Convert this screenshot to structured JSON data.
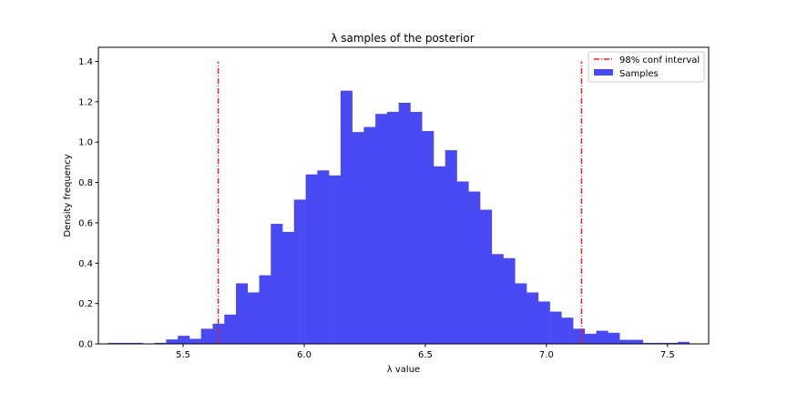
{
  "chart_data": {
    "type": "histogram",
    "title": "λ samples of the posterior",
    "xlabel": "λ value",
    "ylabel": "Density frequency",
    "xlim": [
      5.15,
      7.67
    ],
    "ylim": [
      0,
      1.47
    ],
    "x_ticks": [
      5.5,
      6.0,
      6.5,
      7.0,
      7.5
    ],
    "x_tick_labels": [
      "5.5",
      "6.0",
      "6.5",
      "7.0",
      "7.5"
    ],
    "y_ticks": [
      0.0,
      0.2,
      0.4,
      0.6,
      0.8,
      1.0,
      1.2,
      1.4
    ],
    "y_tick_labels": [
      "0.0",
      "0.2",
      "0.4",
      "0.6",
      "0.8",
      "1.0",
      "1.2",
      "1.4"
    ],
    "grid": false,
    "legend_position": "top-right",
    "series": [
      {
        "name": "Samples",
        "kind": "histogram",
        "color": "#4a4af5",
        "bin_edges": [
          5.19,
          5.238,
          5.286,
          5.334,
          5.382,
          5.43,
          5.478,
          5.526,
          5.574,
          5.622,
          5.67,
          5.718,
          5.766,
          5.814,
          5.862,
          5.91,
          5.958,
          6.006,
          6.054,
          6.102,
          6.15,
          6.198,
          6.246,
          6.294,
          6.342,
          6.39,
          6.438,
          6.486,
          6.534,
          6.582,
          6.63,
          6.678,
          6.726,
          6.774,
          6.822,
          6.87,
          6.918,
          6.966,
          7.014,
          7.062,
          7.11,
          7.158,
          7.206,
          7.254,
          7.302,
          7.35,
          7.398,
          7.446,
          7.494,
          7.542,
          7.59
        ],
        "values": [
          0.005,
          0.005,
          0.005,
          0.0,
          0.005,
          0.022,
          0.04,
          0.025,
          0.075,
          0.1,
          0.145,
          0.3,
          0.255,
          0.34,
          0.595,
          0.555,
          0.715,
          0.84,
          0.86,
          0.835,
          1.255,
          1.05,
          1.075,
          1.14,
          1.15,
          1.195,
          1.15,
          1.055,
          0.88,
          0.96,
          0.805,
          0.755,
          0.665,
          0.445,
          0.425,
          0.3,
          0.255,
          0.21,
          0.16,
          0.13,
          0.075,
          0.05,
          0.065,
          0.055,
          0.02,
          0.02,
          0.005,
          0.005,
          0.005,
          0.01
        ]
      },
      {
        "name": "98% conf interval",
        "kind": "vlines",
        "color": "#e8232b",
        "linestyle": "dashdot",
        "x": [
          5.645,
          7.145
        ],
        "y_range": [
          0,
          1.4
        ]
      }
    ]
  }
}
